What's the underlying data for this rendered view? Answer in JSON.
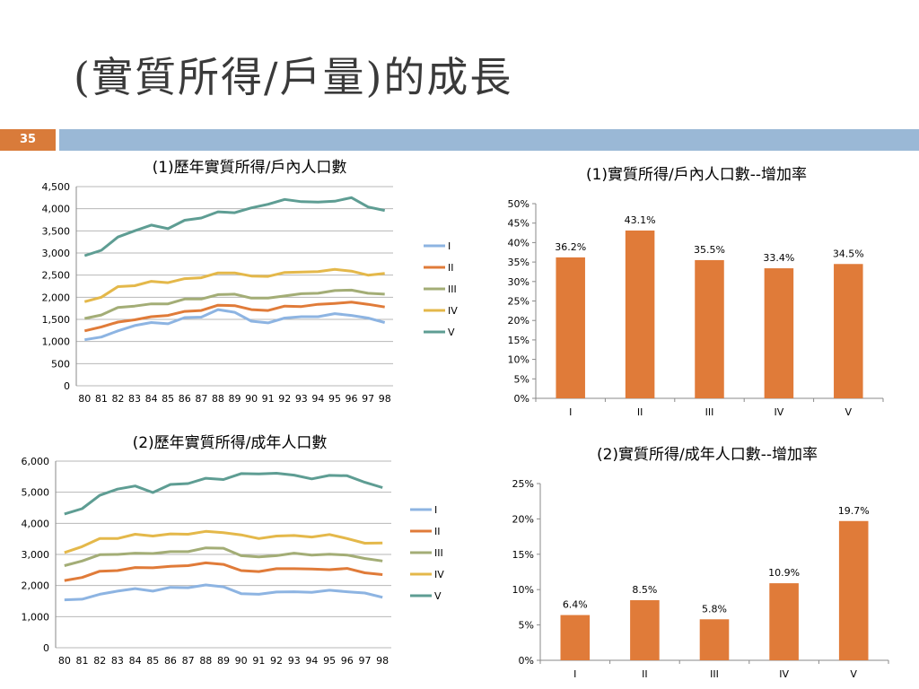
{
  "slide": {
    "title": "(實質所得/戶量)的成長",
    "page_number": "35",
    "colors": {
      "left_bar": "#d97b3a",
      "right_bar": "#9ab8d6"
    }
  },
  "chart_data": [
    {
      "type": "line",
      "title": "(1)歷年實質所得/戶內人口數",
      "x": [
        "80",
        "81",
        "82",
        "83",
        "84",
        "85",
        "86",
        "87",
        "88",
        "89",
        "90",
        "91",
        "92",
        "93",
        "94",
        "95",
        "96",
        "97",
        "98"
      ],
      "ylim": [
        0,
        4500
      ],
      "yticks": [
        0,
        500,
        1000,
        1500,
        2000,
        2500,
        3000,
        3500,
        4000,
        4500
      ],
      "ytick_labels": [
        "0",
        "500",
        "1,000",
        "1,500",
        "2,000",
        "2,500",
        "3,000",
        "3,500",
        "4,000",
        "4,500"
      ],
      "grid": true,
      "legend": "right",
      "series": [
        {
          "name": "I",
          "color": "#8db4e2",
          "values": [
            1040,
            1100,
            1240,
            1360,
            1430,
            1400,
            1540,
            1550,
            1720,
            1660,
            1460,
            1420,
            1530,
            1560,
            1560,
            1630,
            1590,
            1530,
            1430
          ]
        },
        {
          "name": "II",
          "color": "#e07b39",
          "values": [
            1240,
            1330,
            1440,
            1490,
            1560,
            1590,
            1680,
            1700,
            1820,
            1810,
            1720,
            1700,
            1800,
            1790,
            1840,
            1860,
            1890,
            1840,
            1780
          ]
        },
        {
          "name": "III",
          "color": "#a3ad76",
          "values": [
            1520,
            1600,
            1770,
            1800,
            1850,
            1850,
            1960,
            1960,
            2060,
            2070,
            1980,
            1980,
            2030,
            2080,
            2090,
            2150,
            2160,
            2090,
            2070
          ]
        },
        {
          "name": "IV",
          "color": "#e4b84a",
          "values": [
            1900,
            2000,
            2240,
            2260,
            2360,
            2330,
            2420,
            2440,
            2550,
            2550,
            2480,
            2470,
            2560,
            2570,
            2580,
            2630,
            2590,
            2500,
            2540
          ]
        },
        {
          "name": "V",
          "color": "#5e9d93",
          "values": [
            2940,
            3060,
            3360,
            3500,
            3630,
            3550,
            3740,
            3790,
            3930,
            3910,
            4020,
            4100,
            4210,
            4160,
            4150,
            4170,
            4250,
            4040,
            3960
          ]
        }
      ]
    },
    {
      "type": "bar",
      "title": "(1)實質所得/戶內人口數--增加率",
      "categories": [
        "I",
        "II",
        "III",
        "IV",
        "V"
      ],
      "values": [
        36.2,
        43.1,
        35.5,
        33.4,
        34.5
      ],
      "labels": [
        "36.2%",
        "43.1%",
        "35.5%",
        "33.4%",
        "34.5%"
      ],
      "ylim": [
        0,
        50
      ],
      "yticks": [
        0,
        5,
        10,
        15,
        20,
        25,
        30,
        35,
        40,
        45,
        50
      ],
      "ytick_labels": [
        "0%",
        "5%",
        "10%",
        "15%",
        "20%",
        "25%",
        "30%",
        "35%",
        "40%",
        "45%",
        "50%"
      ],
      "color": "#e07b39"
    },
    {
      "type": "line",
      "title": "(2)歷年實質所得/成年人口數",
      "x": [
        "80",
        "81",
        "82",
        "83",
        "84",
        "85",
        "86",
        "87",
        "88",
        "89",
        "90",
        "91",
        "92",
        "93",
        "94",
        "95",
        "96",
        "97",
        "98"
      ],
      "ylim": [
        0,
        6000
      ],
      "yticks": [
        0,
        1000,
        2000,
        3000,
        4000,
        5000,
        6000
      ],
      "ytick_labels": [
        "0",
        "1,000",
        "2,000",
        "3,000",
        "4,000",
        "5,000",
        "6,000"
      ],
      "grid": true,
      "legend": "right",
      "series": [
        {
          "name": "I",
          "color": "#8db4e2",
          "values": [
            1540,
            1560,
            1720,
            1820,
            1900,
            1820,
            1940,
            1930,
            2020,
            1960,
            1740,
            1720,
            1790,
            1800,
            1780,
            1850,
            1800,
            1760,
            1620
          ]
        },
        {
          "name": "II",
          "color": "#e07b39",
          "values": [
            2160,
            2260,
            2460,
            2480,
            2580,
            2570,
            2620,
            2640,
            2730,
            2680,
            2480,
            2450,
            2540,
            2540,
            2530,
            2510,
            2550,
            2410,
            2350
          ]
        },
        {
          "name": "III",
          "color": "#a3ad76",
          "values": [
            2640,
            2790,
            2990,
            3000,
            3040,
            3030,
            3090,
            3090,
            3210,
            3200,
            2960,
            2920,
            2960,
            3040,
            2980,
            3010,
            2980,
            2870,
            2790
          ]
        },
        {
          "name": "IV",
          "color": "#e4b84a",
          "values": [
            3060,
            3250,
            3510,
            3510,
            3650,
            3590,
            3660,
            3650,
            3740,
            3700,
            3630,
            3510,
            3590,
            3610,
            3560,
            3640,
            3510,
            3360,
            3370
          ]
        },
        {
          "name": "V",
          "color": "#5e9d93",
          "values": [
            4300,
            4470,
            4900,
            5100,
            5200,
            4990,
            5250,
            5280,
            5450,
            5410,
            5600,
            5590,
            5610,
            5550,
            5430,
            5540,
            5530,
            5320,
            5150
          ]
        }
      ]
    },
    {
      "type": "bar",
      "title": "(2)實質所得/成年人口數--增加率",
      "categories": [
        "I",
        "II",
        "III",
        "IV",
        "V"
      ],
      "values": [
        6.4,
        8.5,
        5.8,
        10.9,
        19.7
      ],
      "labels": [
        "6.4%",
        "8.5%",
        "5.8%",
        "10.9%",
        "19.7%"
      ],
      "ylim": [
        0,
        25
      ],
      "yticks": [
        0,
        5,
        10,
        15,
        20,
        25
      ],
      "ytick_labels": [
        "0%",
        "5%",
        "10%",
        "15%",
        "20%",
        "25%"
      ],
      "color": "#e07b39"
    }
  ]
}
